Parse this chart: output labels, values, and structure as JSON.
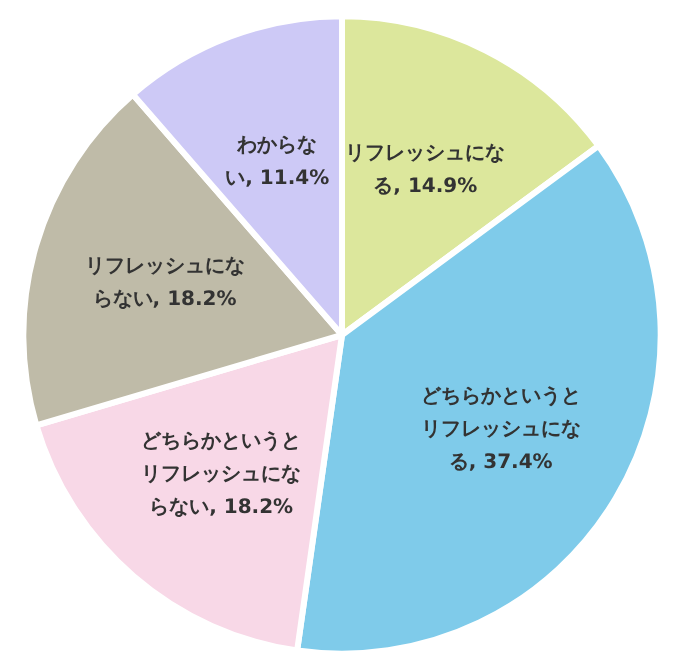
{
  "chart_data": {
    "type": "pie",
    "categories": [
      "リフレッシュになる",
      "どちらかというとリフレッシュになる",
      "どちらかというとリフレッシュにならない",
      "リフレッシュにならない",
      "わからない"
    ],
    "values": [
      14.9,
      37.4,
      18.2,
      18.2,
      11.4
    ],
    "value_labels": [
      "14.9%",
      "37.4%",
      "18.2%",
      "18.2%",
      "11.4%"
    ],
    "colors": [
      "#dce79c",
      "#7fcbea",
      "#f8d8e7",
      "#bfbba8",
      "#cdc9f6"
    ]
  }
}
